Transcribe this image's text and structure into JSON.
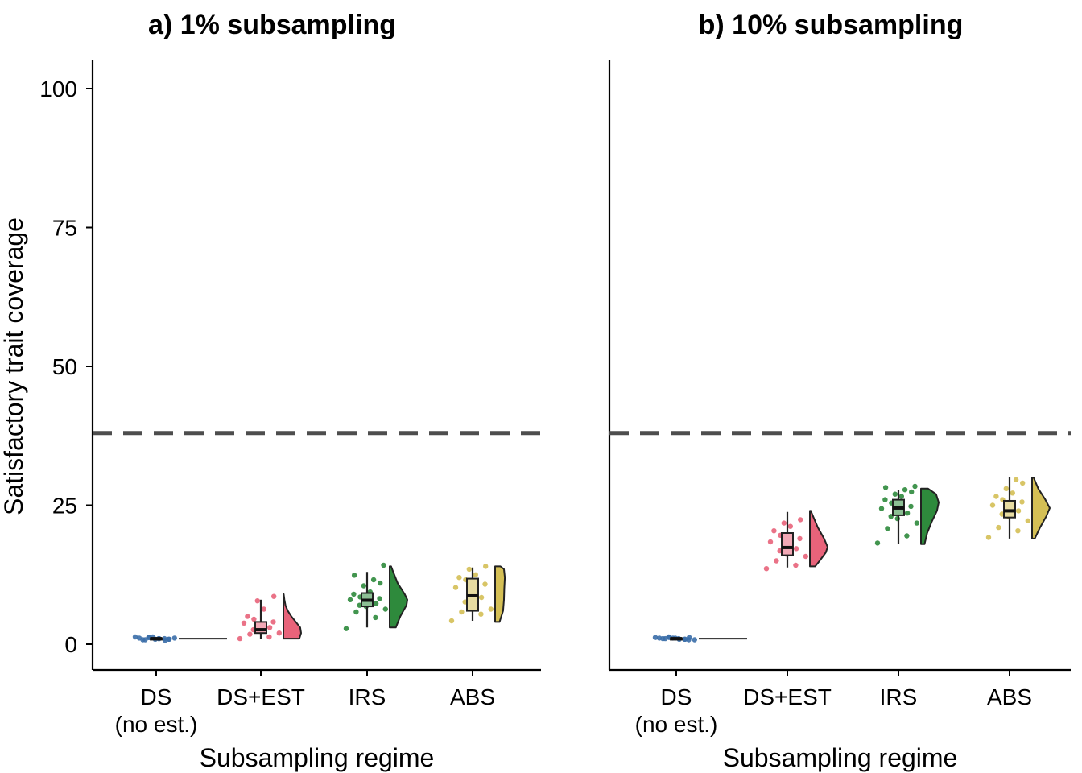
{
  "figure": {
    "ylabel": "Satisfactory trait coverage",
    "threshold": 38,
    "colors": {
      "DS (no est.)": "#3b6ea8",
      "DS+EST": "#e8637a",
      "IRS": "#2e8a3c",
      "ABS": "#d4bf55"
    }
  },
  "chart_data": [
    {
      "type": "raincloud",
      "title": "a) 1% subsampling",
      "xlabel": "Subsampling regime",
      "ylabel": "Satisfactory trait coverage",
      "ylim": [
        0,
        100
      ],
      "yticks": [
        0,
        25,
        50,
        75,
        100
      ],
      "reference_line": 38,
      "categories": [
        {
          "label": "DS",
          "sublabel": "(no est.)"
        },
        {
          "label": "DS+EST",
          "sublabel": ""
        },
        {
          "label": "IRS",
          "sublabel": ""
        },
        {
          "label": "ABS",
          "sublabel": ""
        }
      ],
      "series": [
        {
          "category": "DS (no est.)",
          "min": 0.8,
          "q1": 0.9,
          "median": 1.0,
          "q3": 1.1,
          "max": 1.2,
          "points": [
            1.3,
            1.0,
            0.8,
            1.1,
            0.9,
            1.2,
            0.7,
            1.0,
            1.1,
            0.9,
            1.2,
            0.8,
            1.0,
            1.3,
            0.9
          ],
          "density": [
            [
              1.0,
              1.0
            ]
          ]
        },
        {
          "category": "DS+EST",
          "min": 1.0,
          "q1": 2.0,
          "median": 2.6,
          "q3": 4.0,
          "max": 8.0,
          "points": [
            1.0,
            1.3,
            1.8,
            2.0,
            2.3,
            2.6,
            3.0,
            3.3,
            3.8,
            4.0,
            4.5,
            5.0,
            6.3,
            7.8,
            8.6
          ],
          "density": [
            [
              1.0,
              0.9
            ],
            [
              2.0,
              1.0
            ],
            [
              3.0,
              0.95
            ],
            [
              4.0,
              0.7
            ],
            [
              5.0,
              0.45
            ],
            [
              6.0,
              0.25
            ],
            [
              7.0,
              0.12
            ],
            [
              8.0,
              0.06
            ],
            [
              9.0,
              0.02
            ]
          ]
        },
        {
          "category": "IRS",
          "min": 3.0,
          "q1": 6.8,
          "median": 7.9,
          "q3": 9.2,
          "max": 13.0,
          "points": [
            2.8,
            4.8,
            5.8,
            6.3,
            6.8,
            7.0,
            7.3,
            7.6,
            8.0,
            8.2,
            8.5,
            9.0,
            9.4,
            10.5,
            11.0,
            11.6,
            12.4,
            14.2
          ],
          "density": [
            [
              3.0,
              0.35
            ],
            [
              5.0,
              0.6
            ],
            [
              7.0,
              0.95
            ],
            [
              8.0,
              1.0
            ],
            [
              9.0,
              0.85
            ],
            [
              11.0,
              0.45
            ],
            [
              13.0,
              0.2
            ],
            [
              14.0,
              0.08
            ]
          ]
        },
        {
          "category": "ABS",
          "min": 4.2,
          "q1": 6.0,
          "median": 8.7,
          "q3": 11.8,
          "max": 13.8,
          "points": [
            4.2,
            5.4,
            5.8,
            6.3,
            7.0,
            7.6,
            8.4,
            9.0,
            10.2,
            10.8,
            11.6,
            12.0,
            12.5,
            13.5,
            14.0
          ],
          "density": [
            [
              4.0,
              0.25
            ],
            [
              6.0,
              0.45
            ],
            [
              8.0,
              0.5
            ],
            [
              10.0,
              0.52
            ],
            [
              12.0,
              0.55
            ],
            [
              13.5,
              0.5
            ],
            [
              14.0,
              0.3
            ]
          ]
        }
      ]
    },
    {
      "type": "raincloud",
      "title": "b) 10% subsampling",
      "xlabel": "Subsampling regime",
      "ylabel": "",
      "ylim": [
        0,
        100
      ],
      "yticks": [],
      "reference_line": 38,
      "categories": [
        {
          "label": "DS",
          "sublabel": "(no est.)"
        },
        {
          "label": "DS+EST",
          "sublabel": ""
        },
        {
          "label": "IRS",
          "sublabel": ""
        },
        {
          "label": "ABS",
          "sublabel": ""
        }
      ],
      "series": [
        {
          "category": "DS (no est.)",
          "min": 0.8,
          "q1": 0.9,
          "median": 1.0,
          "q3": 1.1,
          "max": 1.2,
          "points": [
            1.2,
            0.9,
            1.0,
            0.8,
            1.1,
            1.3,
            0.9,
            1.0,
            1.1,
            0.8,
            1.2,
            1.0,
            0.9,
            1.1,
            1.2
          ],
          "density": [
            [
              1.0,
              1.0
            ]
          ]
        },
        {
          "category": "DS+EST",
          "min": 13.8,
          "q1": 16.0,
          "median": 17.4,
          "q3": 20.0,
          "max": 23.8,
          "points": [
            13.6,
            14.2,
            15.0,
            15.8,
            16.2,
            16.8,
            17.2,
            17.6,
            18.4,
            19.0,
            19.6,
            20.4,
            21.2,
            21.8,
            22.4
          ],
          "density": [
            [
              14.0,
              0.3
            ],
            [
              15.0,
              0.55
            ],
            [
              16.5,
              0.9
            ],
            [
              17.5,
              1.0
            ],
            [
              19.0,
              0.8
            ],
            [
              21.0,
              0.45
            ],
            [
              23.0,
              0.18
            ],
            [
              24.0,
              0.05
            ]
          ]
        },
        {
          "category": "IRS",
          "min": 18.0,
          "q1": 23.2,
          "median": 24.5,
          "q3": 26.0,
          "max": 27.8,
          "points": [
            18.2,
            19.5,
            20.8,
            21.8,
            22.6,
            23.0,
            23.6,
            24.0,
            24.4,
            24.8,
            25.4,
            26.0,
            26.6,
            27.0,
            27.4,
            27.8,
            28.2,
            28.4
          ],
          "density": [
            [
              18.0,
              0.2
            ],
            [
              20.0,
              0.35
            ],
            [
              22.0,
              0.6
            ],
            [
              24.0,
              0.9
            ],
            [
              25.5,
              1.0
            ],
            [
              27.0,
              0.85
            ],
            [
              28.0,
              0.4
            ]
          ]
        },
        {
          "category": "ABS",
          "min": 19.0,
          "q1": 22.8,
          "median": 24.0,
          "q3": 25.8,
          "max": 30.0,
          "points": [
            19.2,
            20.4,
            21.0,
            22.2,
            23.0,
            23.4,
            24.0,
            24.6,
            25.0,
            25.6,
            26.0,
            26.6,
            27.2,
            28.0,
            29.0,
            29.6
          ],
          "density": [
            [
              19.0,
              0.15
            ],
            [
              21.0,
              0.45
            ],
            [
              23.0,
              0.8
            ],
            [
              24.5,
              1.0
            ],
            [
              26.0,
              0.75
            ],
            [
              28.0,
              0.35
            ],
            [
              30.0,
              0.08
            ]
          ]
        }
      ]
    }
  ]
}
